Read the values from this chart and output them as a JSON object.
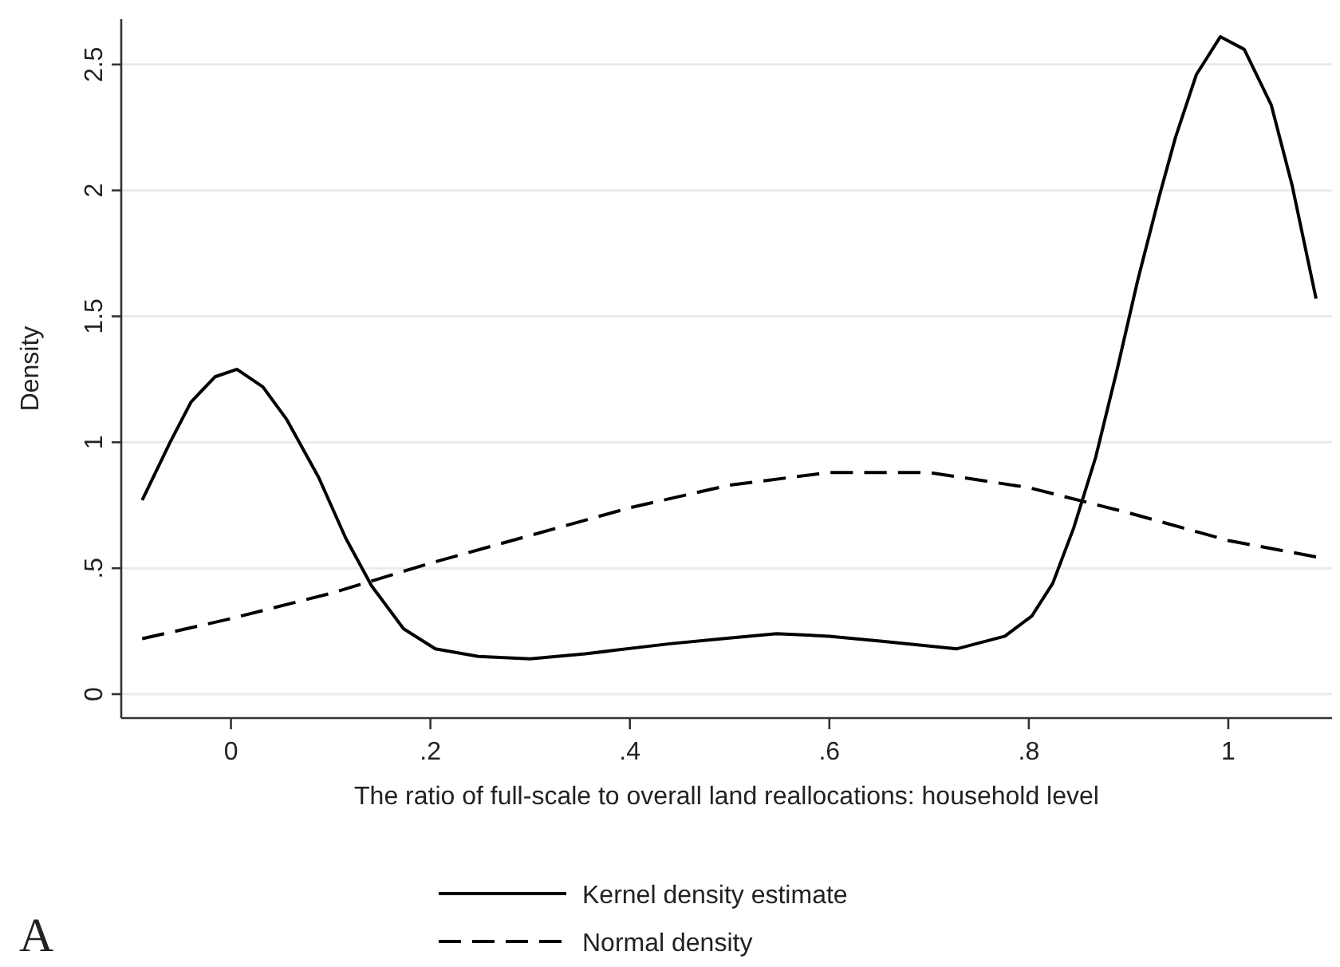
{
  "chart_data": {
    "type": "line",
    "xlabel": "The ratio of full-scale to overall land reallocations: household level",
    "ylabel": "Density",
    "xlim": [
      -0.11,
      1.104
    ],
    "ylim": [
      -0.095,
      2.68
    ],
    "xticks": [
      0,
      {
        "value": 0.2,
        "label": ".2"
      },
      {
        "value": 0.4,
        "label": ".4"
      },
      {
        "value": 0.6,
        "label": ".6"
      },
      {
        "value": 0.8,
        "label": ".8"
      },
      1
    ],
    "yticks": [
      0,
      {
        "value": 0.5,
        "label": ".5"
      },
      1,
      {
        "value": 1.5,
        "label": "1.5"
      },
      2,
      {
        "value": 2.5,
        "label": "2.5"
      }
    ],
    "grid": "y",
    "legend": "bottom",
    "annotations": [
      "A"
    ],
    "series": [
      {
        "name": "Kernel density estimate",
        "color": "#000000",
        "line_style": "solid",
        "x": [
          -0.089,
          -0.061,
          -0.04,
          -0.016,
          0.006,
          0.032,
          0.056,
          0.088,
          0.115,
          0.141,
          0.173,
          0.205,
          0.248,
          0.3,
          0.355,
          0.44,
          0.493,
          0.547,
          0.6,
          0.653,
          0.728,
          0.776,
          0.803,
          0.824,
          0.845,
          0.867,
          0.888,
          0.909,
          0.931,
          0.947,
          0.968,
          0.992,
          1.016,
          1.043,
          1.064,
          1.088
        ],
        "values": [
          0.77,
          1.0,
          1.16,
          1.26,
          1.29,
          1.22,
          1.09,
          0.86,
          0.62,
          0.43,
          0.26,
          0.18,
          0.15,
          0.14,
          0.16,
          0.2,
          0.22,
          0.24,
          0.23,
          0.21,
          0.18,
          0.23,
          0.31,
          0.44,
          0.66,
          0.94,
          1.28,
          1.64,
          1.98,
          2.21,
          2.46,
          2.61,
          2.56,
          2.34,
          2.02,
          1.57
        ]
      },
      {
        "name": "Normal density",
        "color": "#000000",
        "line_style": "dashed",
        "x": [
          -0.089,
          0,
          0.1,
          0.2,
          0.3,
          0.4,
          0.5,
          0.6,
          0.7,
          0.8,
          0.9,
          1.0,
          1.088
        ],
        "values": [
          0.22,
          0.3,
          0.4,
          0.52,
          0.63,
          0.74,
          0.83,
          0.88,
          0.88,
          0.82,
          0.72,
          0.61,
          0.545
        ]
      }
    ]
  }
}
